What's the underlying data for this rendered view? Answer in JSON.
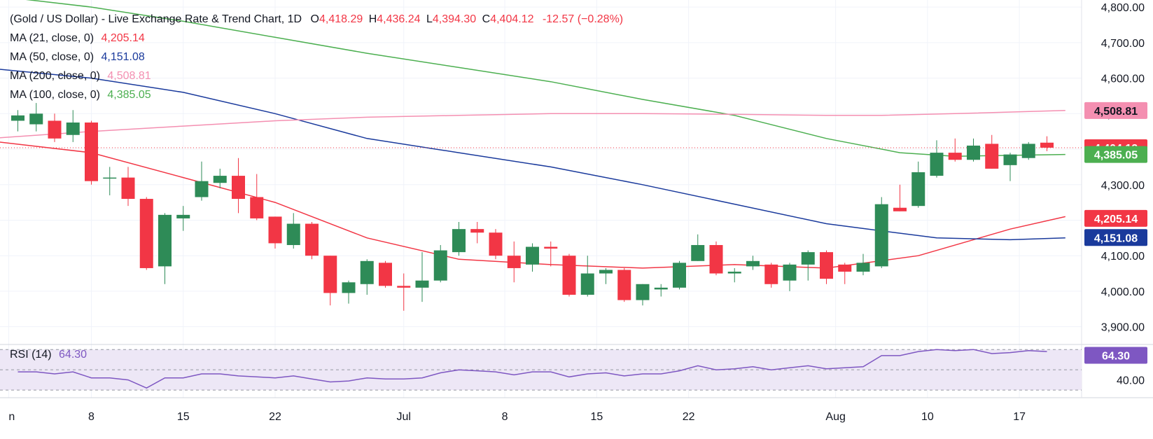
{
  "colors": {
    "up": "#2e8b57",
    "down": "#f23645",
    "ma21": "#f23645",
    "ma50": "#1a3a9c",
    "ma100": "#4caf50",
    "ma200": "#f48fb1",
    "rsi": "#7e57c2",
    "rsi_band": "#ede7f6",
    "price_line": "#f23645"
  },
  "header": {
    "title": "(Gold / US Dollar) - Live Exchange Rate & Trend Chart, 1D",
    "open_label": "O",
    "open": "4,418.29",
    "high_label": "H",
    "high": "4,436.24",
    "low_label": "L",
    "low": "4,394.30",
    "close_label": "C",
    "close": "4,404.12",
    "change": "-12.57 (−0.28%)"
  },
  "legend": [
    {
      "label": "MA (21, close, 0)",
      "value": "4,205.14",
      "color_key": "ma21"
    },
    {
      "label": "MA (50, close, 0)",
      "value": "4,151.08",
      "color_key": "ma50"
    },
    {
      "label": "MA (200, close, 0)",
      "value": "4,508.81",
      "color_key": "ma200"
    },
    {
      "label": "MA (100, close, 0)",
      "value": "4,385.05",
      "color_key": "ma100"
    }
  ],
  "rsi_legend": {
    "label": "RSI (14)",
    "value": "64.30"
  },
  "chart_data": {
    "type": "candlestick",
    "ylim": [
      3850,
      4820
    ],
    "yticks": [
      3900,
      4000,
      4100,
      4200,
      4300,
      4400,
      4500,
      4600,
      4700,
      4800
    ],
    "ytick_labels": [
      "3,900.00",
      "4,000.00",
      "4,100.00",
      "4,200.00",
      "4,300.00",
      "4,400.00",
      "4,500.00",
      "4,600.00",
      "4,700.00",
      "4,800.00"
    ],
    "xticks": [
      {
        "label": "n",
        "index": -0.5
      },
      {
        "label": "8",
        "index": 4
      },
      {
        "label": "15",
        "index": 9
      },
      {
        "label": "22",
        "index": 14
      },
      {
        "label": "Jul",
        "index": 21
      },
      {
        "label": "8",
        "index": 26.5
      },
      {
        "label": "15",
        "index": 31.5
      },
      {
        "label": "22",
        "index": 36.5
      },
      {
        "label": "Aug",
        "index": 44.5
      },
      {
        "label": "10",
        "index": 49.5
      },
      {
        "label": "17",
        "index": 54.5
      }
    ],
    "candles": [
      {
        "o": 4480,
        "h": 4510,
        "l": 4450,
        "c": 4495
      },
      {
        "o": 4470,
        "h": 4530,
        "l": 4450,
        "c": 4500
      },
      {
        "o": 4480,
        "h": 4500,
        "l": 4420,
        "c": 4430
      },
      {
        "o": 4440,
        "h": 4510,
        "l": 4420,
        "c": 4475
      },
      {
        "o": 4475,
        "h": 4480,
        "l": 4300,
        "c": 4310
      },
      {
        "o": 4320,
        "h": 4350,
        "l": 4270,
        "c": 4320
      },
      {
        "o": 4320,
        "h": 4350,
        "l": 4240,
        "c": 4260
      },
      {
        "o": 4260,
        "h": 4265,
        "l": 4060,
        "c": 4065
      },
      {
        "o": 4070,
        "h": 4220,
        "l": 4020,
        "c": 4215
      },
      {
        "o": 4205,
        "h": 4240,
        "l": 4170,
        "c": 4215
      },
      {
        "o": 4265,
        "h": 4365,
        "l": 4255,
        "c": 4310
      },
      {
        "o": 4305,
        "h": 4345,
        "l": 4290,
        "c": 4325
      },
      {
        "o": 4325,
        "h": 4375,
        "l": 4220,
        "c": 4260
      },
      {
        "o": 4265,
        "h": 4330,
        "l": 4200,
        "c": 4205
      },
      {
        "o": 4210,
        "h": 4210,
        "l": 4120,
        "c": 4135
      },
      {
        "o": 4130,
        "h": 4220,
        "l": 4120,
        "c": 4190
      },
      {
        "o": 4190,
        "h": 4195,
        "l": 4090,
        "c": 4100
      },
      {
        "o": 4100,
        "h": 4100,
        "l": 3960,
        "c": 3995
      },
      {
        "o": 3995,
        "h": 4030,
        "l": 3965,
        "c": 4025
      },
      {
        "o": 4020,
        "h": 4090,
        "l": 3990,
        "c": 4085
      },
      {
        "o": 4080,
        "h": 4085,
        "l": 4010,
        "c": 4015
      },
      {
        "o": 4015,
        "h": 4050,
        "l": 3945,
        "c": 4010
      },
      {
        "o": 4010,
        "h": 4110,
        "l": 3970,
        "c": 4030
      },
      {
        "o": 4030,
        "h": 4130,
        "l": 4025,
        "c": 4115
      },
      {
        "o": 4110,
        "h": 4195,
        "l": 4100,
        "c": 4175
      },
      {
        "o": 4175,
        "h": 4195,
        "l": 4135,
        "c": 4165
      },
      {
        "o": 4165,
        "h": 4175,
        "l": 4090,
        "c": 4100
      },
      {
        "o": 4100,
        "h": 4140,
        "l": 4025,
        "c": 4065
      },
      {
        "o": 4075,
        "h": 4135,
        "l": 4055,
        "c": 4125
      },
      {
        "o": 4125,
        "h": 4140,
        "l": 4070,
        "c": 4120
      },
      {
        "o": 4100,
        "h": 4105,
        "l": 3985,
        "c": 3990
      },
      {
        "o": 3990,
        "h": 4100,
        "l": 3985,
        "c": 4050
      },
      {
        "o": 4050,
        "h": 4065,
        "l": 4020,
        "c": 4060
      },
      {
        "o": 4060,
        "h": 4065,
        "l": 3970,
        "c": 3975
      },
      {
        "o": 3975,
        "h": 4020,
        "l": 3960,
        "c": 4020
      },
      {
        "o": 4005,
        "h": 4020,
        "l": 3985,
        "c": 4010
      },
      {
        "o": 4010,
        "h": 4085,
        "l": 4005,
        "c": 4080
      },
      {
        "o": 4085,
        "h": 4160,
        "l": 4085,
        "c": 4130
      },
      {
        "o": 4130,
        "h": 4140,
        "l": 4045,
        "c": 4050
      },
      {
        "o": 4050,
        "h": 4065,
        "l": 4025,
        "c": 4055
      },
      {
        "o": 4070,
        "h": 4100,
        "l": 4060,
        "c": 4085
      },
      {
        "o": 4075,
        "h": 4080,
        "l": 4010,
        "c": 4020
      },
      {
        "o": 4030,
        "h": 4080,
        "l": 4000,
        "c": 4075
      },
      {
        "o": 4075,
        "h": 4115,
        "l": 4030,
        "c": 4110
      },
      {
        "o": 4110,
        "h": 4115,
        "l": 4020,
        "c": 4035
      },
      {
        "o": 4075,
        "h": 4080,
        "l": 4020,
        "c": 4055
      },
      {
        "o": 4055,
        "h": 4105,
        "l": 4045,
        "c": 4080
      },
      {
        "o": 4070,
        "h": 4265,
        "l": 4065,
        "c": 4245
      },
      {
        "o": 4235,
        "h": 4300,
        "l": 4225,
        "c": 4225
      },
      {
        "o": 4240,
        "h": 4365,
        "l": 4235,
        "c": 4335
      },
      {
        "o": 4325,
        "h": 4425,
        "l": 4320,
        "c": 4390
      },
      {
        "o": 4390,
        "h": 4430,
        "l": 4365,
        "c": 4370
      },
      {
        "o": 4370,
        "h": 4430,
        "l": 4365,
        "c": 4410
      },
      {
        "o": 4415,
        "h": 4440,
        "l": 4345,
        "c": 4345
      },
      {
        "o": 4355,
        "h": 4390,
        "l": 4310,
        "c": 4385
      },
      {
        "o": 4375,
        "h": 4420,
        "l": 4370,
        "c": 4415
      },
      {
        "o": 4418.29,
        "h": 4436.24,
        "l": 4394.3,
        "c": 4404.12
      }
    ],
    "series": [
      {
        "key": "ma21",
        "points": [
          [
            -1,
            4420
          ],
          [
            4,
            4390
          ],
          [
            9,
            4320
          ],
          [
            14,
            4250
          ],
          [
            19,
            4150
          ],
          [
            24,
            4090
          ],
          [
            29,
            4075
          ],
          [
            34,
            4065
          ],
          [
            39,
            4075
          ],
          [
            44,
            4065
          ],
          [
            49,
            4100
          ],
          [
            54,
            4175
          ],
          [
            57,
            4210
          ]
        ]
      },
      {
        "key": "ma50",
        "points": [
          [
            -1,
            4625
          ],
          [
            4,
            4600
          ],
          [
            9,
            4560
          ],
          [
            14,
            4500
          ],
          [
            19,
            4430
          ],
          [
            24,
            4390
          ],
          [
            29,
            4350
          ],
          [
            34,
            4300
          ],
          [
            39,
            4245
          ],
          [
            44,
            4190
          ],
          [
            47,
            4170
          ],
          [
            50,
            4150
          ],
          [
            54,
            4145
          ],
          [
            57,
            4150
          ]
        ]
      },
      {
        "key": "ma100",
        "points": [
          [
            -1,
            4830
          ],
          [
            4,
            4800
          ],
          [
            9,
            4760
          ],
          [
            14,
            4715
          ],
          [
            19,
            4670
          ],
          [
            24,
            4630
          ],
          [
            29,
            4590
          ],
          [
            34,
            4540
          ],
          [
            39,
            4495
          ],
          [
            44,
            4430
          ],
          [
            48,
            4390
          ],
          [
            51,
            4380
          ],
          [
            57,
            4385
          ]
        ]
      },
      {
        "key": "ma200",
        "points": [
          [
            -1,
            4432
          ],
          [
            4,
            4450
          ],
          [
            9,
            4465
          ],
          [
            14,
            4480
          ],
          [
            19,
            4490
          ],
          [
            24,
            4495
          ],
          [
            29,
            4500
          ],
          [
            34,
            4500
          ],
          [
            39,
            4498
          ],
          [
            44,
            4495
          ],
          [
            47,
            4495
          ],
          [
            51,
            4500
          ],
          [
            57,
            4508.81
          ]
        ]
      }
    ],
    "current_price": 4404.12,
    "price_labels": [
      {
        "value": 4508.81,
        "text": "4,508.81",
        "color_key": "ma200",
        "text_color": "#131722"
      },
      {
        "value": 4404.12,
        "text": "4,404.12",
        "color_key": "down",
        "text_color": "#ffffff"
      },
      {
        "value": 4385.05,
        "text": "4,385.05",
        "color_key": "ma100",
        "text_color": "#ffffff"
      },
      {
        "value": 4205.14,
        "text": "4,205.14",
        "color_key": "ma21",
        "text_color": "#ffffff"
      },
      {
        "value": 4151.08,
        "text": "4,151.08",
        "color_key": "ma50",
        "text_color": "#ffffff"
      }
    ],
    "rsi": {
      "ylim": [
        28,
        75
      ],
      "band": [
        30,
        70
      ],
      "ytick": {
        "value": 40,
        "text": "40.00"
      },
      "current": {
        "value": 64.3,
        "text": "64.30"
      },
      "values": [
        48,
        48,
        46,
        48,
        42,
        42,
        40,
        32,
        42,
        42,
        46,
        46,
        44,
        43,
        42,
        44,
        41,
        38,
        39,
        42,
        41,
        41,
        42,
        47,
        50,
        49,
        48,
        45,
        48,
        48,
        43,
        46,
        47,
        44,
        46,
        46,
        49,
        54,
        50,
        51,
        53,
        50,
        52,
        54,
        51,
        52,
        53,
        64,
        64,
        68,
        70,
        69,
        70,
        66,
        67,
        69,
        68
      ]
    }
  }
}
